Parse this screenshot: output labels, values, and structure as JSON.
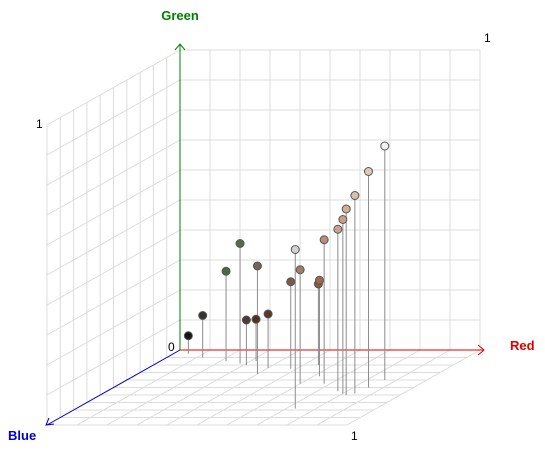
{
  "chart_data": {
    "type": "scatter3d",
    "axes": {
      "x": {
        "label": "Red",
        "color": "#e00000",
        "range": [
          0,
          1
        ]
      },
      "y": {
        "label": "Green",
        "color": "#008000",
        "range": [
          0,
          1
        ]
      },
      "z": {
        "label": "Blue",
        "color": "#0000d0",
        "range": [
          0,
          1
        ]
      }
    },
    "ticks": {
      "origin": "0",
      "red_max": "1",
      "green_max": "1",
      "green_wall_max": "1"
    },
    "grid": true,
    "points": [
      {
        "r": 0.05,
        "g": 0.06,
        "b": 0.05,
        "color": "#141414"
      },
      {
        "r": 0.12,
        "g": 0.14,
        "b": 0.1,
        "color": "#33362f"
      },
      {
        "r": 0.22,
        "g": 0.3,
        "b": 0.15,
        "color": "#4a6a3e"
      },
      {
        "r": 0.28,
        "g": 0.4,
        "b": 0.18,
        "color": "#566b4e"
      },
      {
        "r": 0.31,
        "g": 0.15,
        "b": 0.2,
        "color": "#4c3a3a"
      },
      {
        "r": 0.32,
        "g": 0.14,
        "b": 0.15,
        "color": "#4a3326"
      },
      {
        "r": 0.4,
        "g": 0.36,
        "b": 0.32,
        "color": "#6f6558"
      },
      {
        "r": 0.4,
        "g": 0.18,
        "b": 0.24,
        "color": "#54382a"
      },
      {
        "r": 0.48,
        "g": 0.29,
        "b": 0.25,
        "color": "#7a5a45"
      },
      {
        "r": 0.55,
        "g": 0.27,
        "b": 0.2,
        "color": "#8e5a36"
      },
      {
        "r": 0.6,
        "g": 0.38,
        "b": 0.45,
        "color": "#a37d65"
      },
      {
        "r": 0.62,
        "g": 0.32,
        "b": 0.35,
        "color": "#9e6a4d"
      },
      {
        "r": 0.68,
        "g": 0.48,
        "b": 0.45,
        "color": "#b58f78"
      },
      {
        "r": 0.73,
        "g": 0.53,
        "b": 0.78,
        "color": "#d2d2d2"
      },
      {
        "r": 0.77,
        "g": 0.54,
        "b": 0.55,
        "color": "#c8a48c"
      },
      {
        "r": 0.8,
        "g": 0.58,
        "b": 0.58,
        "color": "#c7a187"
      },
      {
        "r": 0.82,
        "g": 0.62,
        "b": 0.6,
        "color": "#ceaf98"
      },
      {
        "r": 0.84,
        "g": 0.66,
        "b": 0.58,
        "color": "#d8c0a9"
      },
      {
        "r": 0.85,
        "g": 0.72,
        "b": 0.5,
        "color": "#e0cab6"
      },
      {
        "r": 0.86,
        "g": 0.78,
        "b": 0.4,
        "color": "#f2f2f2"
      }
    ]
  }
}
